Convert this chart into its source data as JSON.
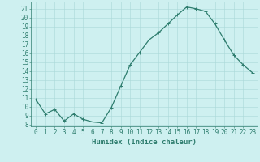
{
  "x": [
    0,
    1,
    2,
    3,
    4,
    5,
    6,
    7,
    8,
    9,
    10,
    11,
    12,
    13,
    14,
    15,
    16,
    17,
    18,
    19,
    20,
    21,
    22,
    23
  ],
  "y": [
    10.8,
    9.2,
    9.7,
    8.4,
    9.2,
    8.6,
    8.3,
    8.2,
    9.9,
    12.3,
    14.7,
    16.1,
    17.5,
    18.3,
    19.3,
    20.3,
    21.2,
    21.0,
    20.7,
    19.3,
    17.5,
    15.8,
    14.7,
    13.8
  ],
  "line_color": "#2e7d6e",
  "marker": "+",
  "marker_size": 3,
  "marker_linewidth": 0.7,
  "bg_color": "#cef0f0",
  "grid_color": "#aad8d8",
  "xlabel": "Humidex (Indice chaleur)",
  "xlim": [
    -0.5,
    23.5
  ],
  "ylim": [
    7.8,
    21.8
  ],
  "yticks": [
    8,
    9,
    10,
    11,
    12,
    13,
    14,
    15,
    16,
    17,
    18,
    19,
    20,
    21
  ],
  "xticks": [
    0,
    1,
    2,
    3,
    4,
    5,
    6,
    7,
    8,
    9,
    10,
    11,
    12,
    13,
    14,
    15,
    16,
    17,
    18,
    19,
    20,
    21,
    22,
    23
  ],
  "tick_fontsize": 5.5,
  "xlabel_fontsize": 6.5,
  "axis_color": "#2e7d6e",
  "linewidth": 0.9
}
